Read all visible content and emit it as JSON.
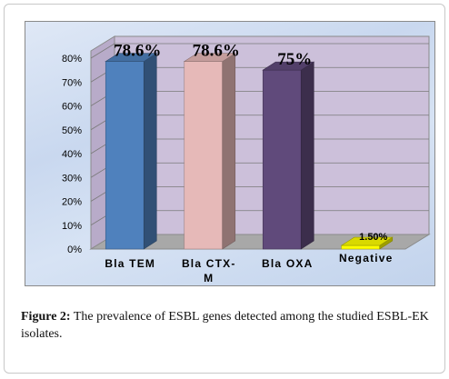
{
  "chart_data": {
    "type": "bar",
    "title": "",
    "xlabel": "",
    "ylabel": "",
    "categories": [
      "Bla TEM",
      "Bla CTX-M",
      "Bla OXA",
      "Negative"
    ],
    "values": [
      78.6,
      78.6,
      75,
      1.5
    ],
    "data_labels": [
      "78.6%",
      "78.6%",
      "75%",
      "1.50%"
    ],
    "y_ticks": [
      "0%",
      "10%",
      "20%",
      "30%",
      "40%",
      "50%",
      "60%",
      "70%",
      "80%"
    ],
    "ylim": [
      0,
      80
    ],
    "grid": true,
    "legend": "none",
    "bar_colors": [
      "#4f81bd",
      "#e6b9b8",
      "#604a7b",
      "#ffff00"
    ],
    "plot_background": "#ccc0da"
  },
  "caption": {
    "label": "Figure 2:",
    "text": " The prevalence of ESBL genes detected among the studied ESBL-EK isolates."
  }
}
